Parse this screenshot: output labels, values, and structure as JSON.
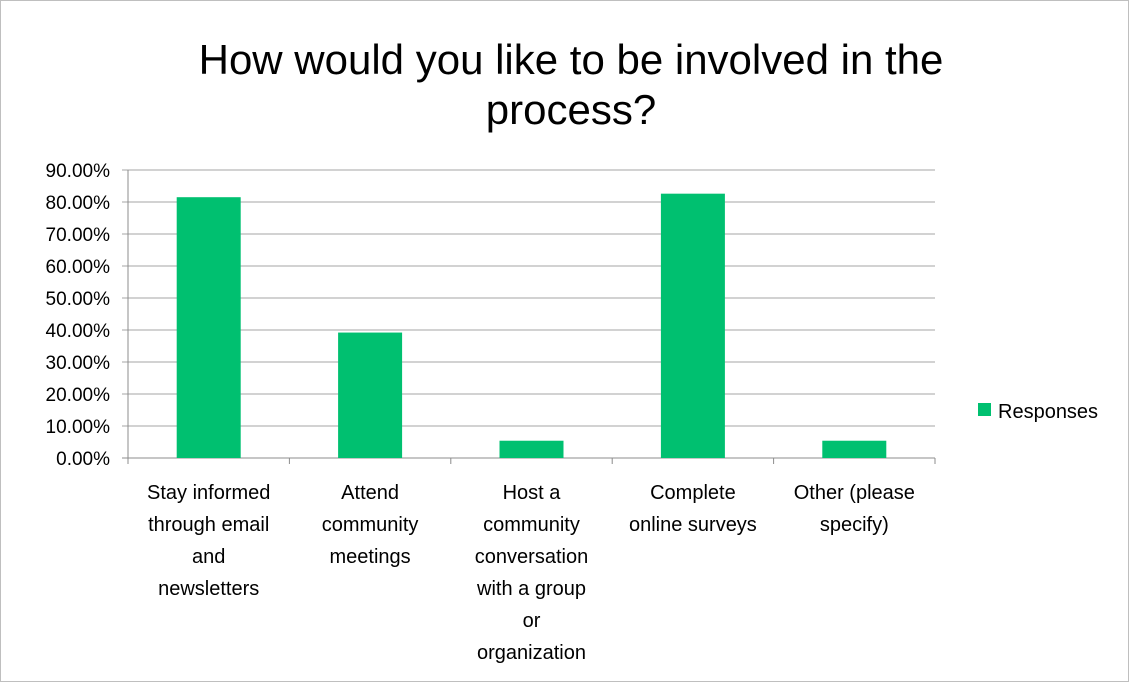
{
  "chart_data": {
    "type": "bar",
    "title": "How would you like to be involved in the process?",
    "title_lines": [
      "How would you like to be involved in the",
      "process?"
    ],
    "categories": [
      "Stay informed through email and newsletters",
      "Attend community meetings",
      "Host a community conversation with a group or organization",
      "Complete online surveys",
      "Other (please specify)"
    ],
    "category_lines": [
      [
        "Stay informed",
        "through email",
        "and",
        "newsletters"
      ],
      [
        "Attend",
        "community",
        "meetings"
      ],
      [
        "Host a",
        "community",
        "conversation",
        "with a group",
        "or",
        "organization"
      ],
      [
        "Complete",
        "online surveys"
      ],
      [
        "Other (please",
        "specify)"
      ]
    ],
    "series": [
      {
        "name": "Responses",
        "values": [
          81.5,
          39.2,
          5.4,
          82.6,
          5.4
        ],
        "color": "#00c070"
      }
    ],
    "ylim": [
      0,
      90
    ],
    "yticks": [
      "0.00%",
      "10.00%",
      "20.00%",
      "30.00%",
      "40.00%",
      "50.00%",
      "60.00%",
      "70.00%",
      "80.00%",
      "90.00%"
    ],
    "xlabel": "",
    "ylabel": "",
    "grid": true,
    "legend": "right"
  }
}
